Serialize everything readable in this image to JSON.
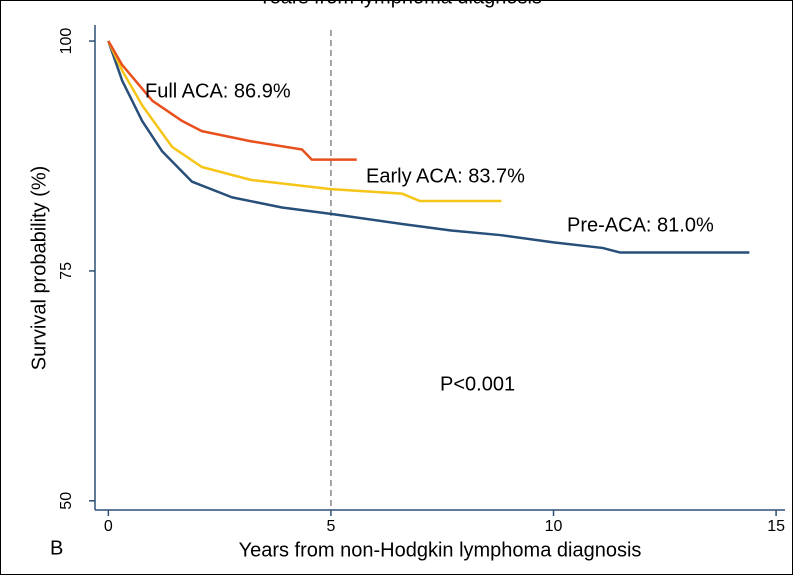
{
  "chart_data": {
    "type": "line",
    "top_caption": "Years from lymphoma diagnosis",
    "panel_label": "B",
    "x_label": "Years from non-Hodgkin lymphoma diagnosis",
    "y_label": "Survival probability (%)",
    "xlim": [
      -0.3,
      15.2
    ],
    "ylim": [
      49,
      101.2
    ],
    "xticks": [
      0,
      5,
      10,
      15
    ],
    "yticks": [
      50,
      75,
      100
    ],
    "reference_line_x": 5,
    "annotations": [
      "Full ACA: 86.9%",
      "Early ACA: 83.7%",
      "Pre-ACA: 81.0%",
      "P<0.001"
    ],
    "series": [
      {
        "name": "Pre-ACA",
        "color": "#284f7a",
        "x": [
          0,
          0.31,
          0.76,
          1.21,
          1.88,
          2.78,
          3.9,
          5,
          6.6,
          7.7,
          8.8,
          10,
          11.1,
          11.5,
          14.4
        ],
        "values": [
          100,
          95.7,
          91.3,
          88,
          84.7,
          83.0,
          81.9,
          81.2,
          80.1,
          79.4,
          78.9,
          78.1,
          77.5,
          77.0,
          77.0
        ]
      },
      {
        "name": "Early ACA",
        "color": "#f5c518",
        "x": [
          0,
          0.31,
          0.76,
          1.43,
          2.1,
          3.2,
          5,
          6.6,
          7.0,
          8.83
        ],
        "values": [
          100,
          96.8,
          93,
          88.5,
          86.3,
          84.9,
          83.9,
          83.4,
          82.6,
          82.6
        ]
      },
      {
        "name": "Full ACA",
        "color": "#e8501e",
        "x": [
          0,
          0.31,
          0.99,
          1.66,
          2.1,
          3.2,
          4.35,
          4.57,
          5.58
        ],
        "values": [
          100,
          97.4,
          93.5,
          91.3,
          90.2,
          89.1,
          88.2,
          87.1,
          87.1
        ]
      }
    ]
  }
}
